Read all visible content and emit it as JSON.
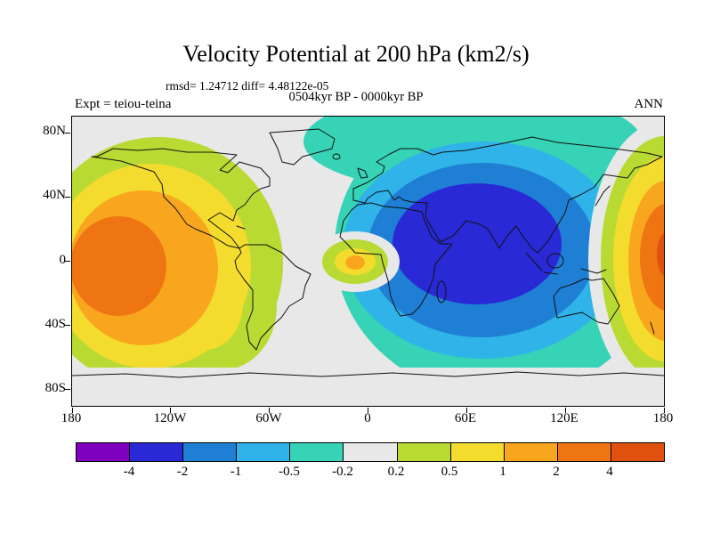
{
  "title": "Velocity Potential at 200 hPa (km2/s)",
  "annotations": {
    "rmsd_line": "rmsd= 1.24712 diff= 4.48122e-05",
    "period_line": "0504kyr BP - 0000kyr BP",
    "experiment": "Expt = teiou-teina",
    "season": "ANN"
  },
  "axes": {
    "lat_labels": [
      "80N",
      "40N",
      "0",
      "40S",
      "80S"
    ],
    "lon_labels": [
      "180",
      "120W",
      "60W",
      "0",
      "60E",
      "120E",
      "180"
    ]
  },
  "colorbar": {
    "labels": [
      "-4",
      "-2",
      "-1",
      "-0.5",
      "-0.2",
      "0.2",
      "0.5",
      "1",
      "2",
      "4"
    ],
    "colors": [
      "#7f00bf",
      "#2929d6",
      "#1f7fd4",
      "#2fb3e8",
      "#36d3b6",
      "#e8e8e8",
      "#b9da33",
      "#f3dc2e",
      "#f9a61f",
      "#ef7512",
      "#e0510f"
    ]
  },
  "chart_data": {
    "type": "heatmap",
    "subtype": "filled-contour world map",
    "title": "Velocity Potential at 200 hPa (km2/s)",
    "subtitle": "0504kyr BP - 0000kyr BP",
    "stats": {
      "rmsd": 1.24712,
      "diff": 4.48122e-05
    },
    "experiment": "teiou-teina",
    "season": "ANN",
    "units": "km2/s",
    "contour_levels": [
      -4,
      -2,
      -1,
      -0.5,
      -0.2,
      0.2,
      0.5,
      1,
      2,
      4
    ],
    "palette": [
      "#7f00bf",
      "#2929d6",
      "#1f7fd4",
      "#2fb3e8",
      "#36d3b6",
      "#e8e8e8",
      "#b9da33",
      "#f3dc2e",
      "#f9a61f",
      "#ef7512",
      "#e0510f"
    ],
    "x_axis": {
      "label": "longitude",
      "ticks": [
        "180",
        "120W",
        "60W",
        "0",
        "60E",
        "120E",
        "180"
      ]
    },
    "y_axis": {
      "label": "latitude",
      "ticks": [
        "80N",
        "40N",
        "0",
        "40S",
        "80S"
      ]
    },
    "grid": false,
    "legend_position": "bottom colorbar",
    "features": [
      {
        "region": "eastern/central Pacific centered near 140W,10S",
        "sign": "positive",
        "peak_band": "2 to 4"
      },
      {
        "region": "far west Pacific at 180 near equator",
        "sign": "positive",
        "peak_band": "> 4"
      },
      {
        "region": "small tropical Atlantic cell near 10W,0",
        "sign": "positive",
        "peak_band": "1 to 2"
      },
      {
        "region": "Indian Ocean / South Asia centered near 60E,10N",
        "sign": "negative",
        "peak_band": "-4 to -2"
      },
      {
        "region": "southern high-latitude band and mid-Atlantic corridor",
        "sign": "near zero",
        "peak_band": "-0.2 to 0.2"
      }
    ]
  }
}
